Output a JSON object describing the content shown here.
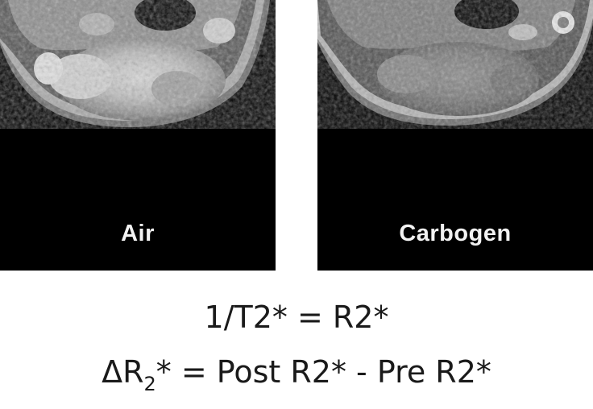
{
  "panels": [
    {
      "label": "Air"
    },
    {
      "label": "Carbogen"
    }
  ],
  "equations": {
    "line1": "1/T2* = R2*",
    "line2": {
      "prefix": "ΔR",
      "subscript": "2",
      "suffix": "* = Post R2* - Pre R2*"
    }
  }
}
